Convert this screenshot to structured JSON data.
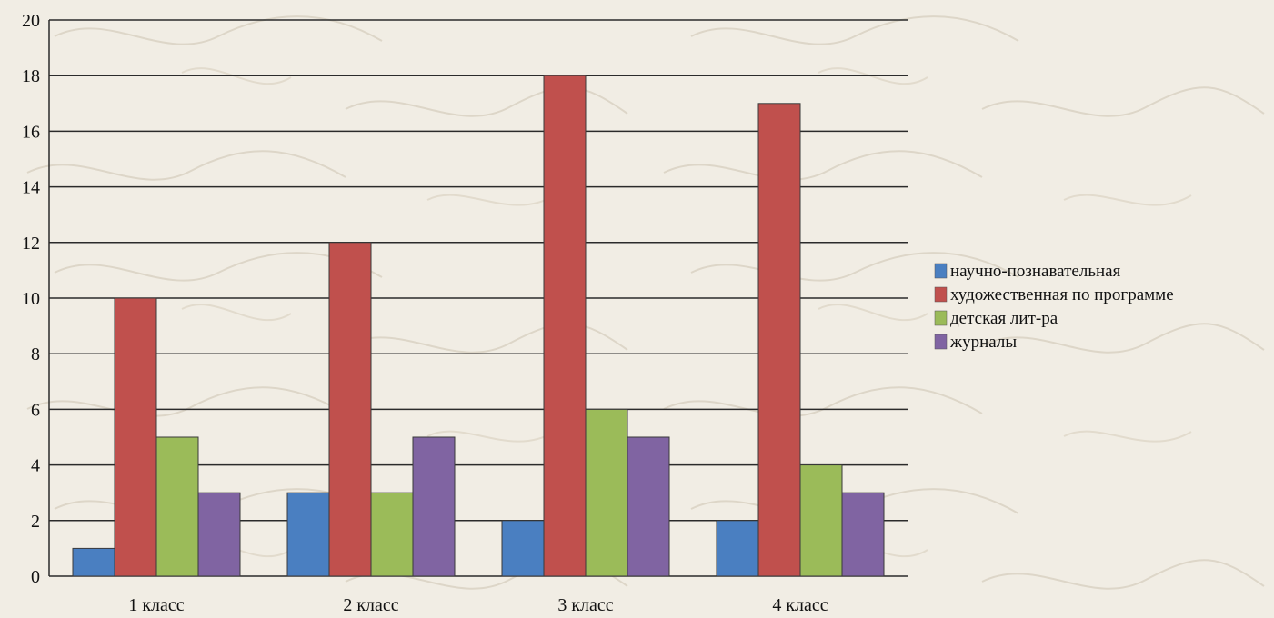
{
  "chart_data": {
    "type": "bar",
    "title": "",
    "xlabel": "",
    "ylabel": "",
    "categories": [
      "1 класс",
      "2 класс",
      "3 класс",
      "4 класс"
    ],
    "series": [
      {
        "name": "научно-познавательная",
        "color": "#4a7fc1",
        "values": [
          1,
          3,
          2,
          2
        ]
      },
      {
        "name": "художественная по программе",
        "color": "#c0504d",
        "values": [
          10,
          12,
          18,
          17
        ]
      },
      {
        "name": "детская лит-ра",
        "color": "#9bbb59",
        "values": [
          5,
          3,
          6,
          4
        ]
      },
      {
        "name": "журналы",
        "color": "#8064a2",
        "values": [
          3,
          5,
          5,
          3
        ]
      }
    ],
    "ylim": [
      0,
      20
    ],
    "yticks": [
      0,
      2,
      4,
      6,
      8,
      10,
      12,
      14,
      16,
      18,
      20
    ],
    "grid": true,
    "legend_position": "right",
    "background_decoration": "handwritten-script-texture"
  }
}
